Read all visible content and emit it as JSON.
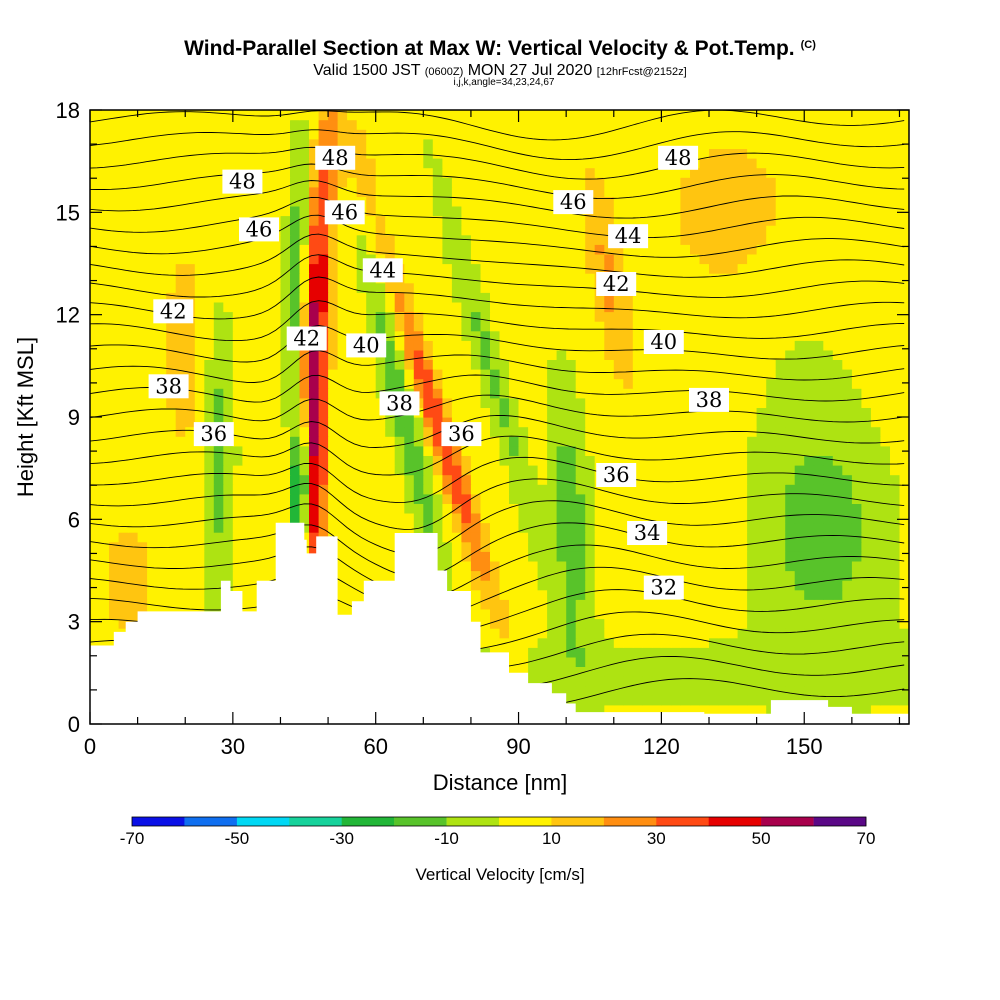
{
  "chart_data": {
    "type": "heatmap",
    "title": "Wind-Parallel Section at Max W: Vertical Velocity & Pot.Temp.",
    "title_mark": "(C)",
    "subtitle_main": "Valid 1500 JST",
    "subtitle_utc": "(0600Z)",
    "subtitle_date": "MON 27 Jul 2020",
    "subtitle_fcst": "[12hrFcst@2152z]",
    "subtitle2": "i,j,k,angle=34,23,24,67",
    "xlabel": "Distance [nm]",
    "ylabel": "Height [Kft MSL]",
    "xlim": [
      0,
      172
    ],
    "ylim": [
      0,
      18
    ],
    "x_ticks": [
      0,
      30,
      60,
      90,
      120,
      150
    ],
    "y_ticks": [
      0,
      3,
      6,
      9,
      12,
      15,
      18
    ],
    "colorbar": {
      "title": "Vertical Velocity [cm/s]",
      "tick_labels": [
        "-70",
        "-50",
        "-30",
        "-10",
        "10",
        "30",
        "50",
        "70"
      ],
      "colors": [
        "#0a10e6",
        "#0f6ff0",
        "#00d8f4",
        "#16d29b",
        "#22b637",
        "#58c32a",
        "#aee312",
        "#fff200",
        "#ffc510",
        "#ff8e11",
        "#ff4a14",
        "#e60000",
        "#a8004c",
        "#5a0886"
      ]
    },
    "theta_contour_labels": [
      {
        "text": "48",
        "x": 51.5,
        "y": 16.6
      },
      {
        "text": "48",
        "x": 32.0,
        "y": 15.9
      },
      {
        "text": "48",
        "x": 123.5,
        "y": 16.6
      },
      {
        "text": "46",
        "x": 53.5,
        "y": 15.0
      },
      {
        "text": "46",
        "x": 35.5,
        "y": 14.5
      },
      {
        "text": "46",
        "x": 101.5,
        "y": 15.3
      },
      {
        "text": "44",
        "x": 61.5,
        "y": 13.3
      },
      {
        "text": "44",
        "x": 113.0,
        "y": 14.3
      },
      {
        "text": "42",
        "x": 17.5,
        "y": 12.1
      },
      {
        "text": "42",
        "x": 45.5,
        "y": 11.3
      },
      {
        "text": "42",
        "x": 110.5,
        "y": 12.9
      },
      {
        "text": "40",
        "x": 58.0,
        "y": 11.1
      },
      {
        "text": "40",
        "x": 120.5,
        "y": 11.2
      },
      {
        "text": "38",
        "x": 16.5,
        "y": 9.9
      },
      {
        "text": "38",
        "x": 65.0,
        "y": 9.4
      },
      {
        "text": "38",
        "x": 130.0,
        "y": 9.5
      },
      {
        "text": "36",
        "x": 26.0,
        "y": 8.5
      },
      {
        "text": "36",
        "x": 78.0,
        "y": 8.5
      },
      {
        "text": "36",
        "x": 110.5,
        "y": 7.3
      },
      {
        "text": "34",
        "x": 117.0,
        "y": 5.6
      },
      {
        "text": "32",
        "x": 120.5,
        "y": 4.0
      }
    ]
  }
}
